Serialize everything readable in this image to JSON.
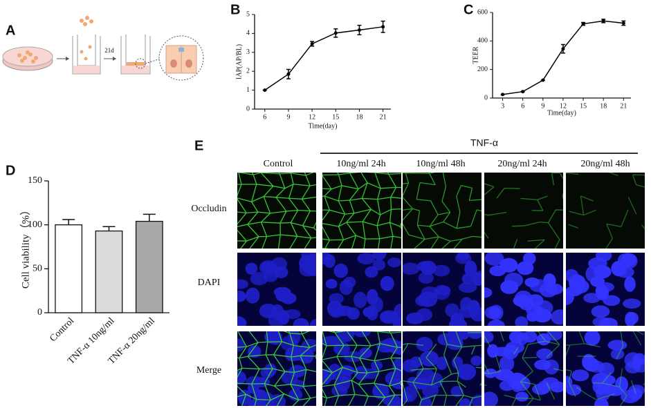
{
  "panel_labels": [
    "A",
    "B",
    "C",
    "D",
    "E"
  ],
  "schematic": {
    "step_label": "21d"
  },
  "chart_data": [
    {
      "type": "line",
      "ylabel": "IAP(AP/BL)",
      "xlabel": "Time(day)",
      "x": [
        6,
        9,
        12,
        15,
        18,
        21
      ],
      "values": [
        1,
        1.85,
        3.45,
        4.02,
        4.18,
        4.35
      ],
      "errors": [
        0,
        0.25,
        0.12,
        0.22,
        0.25,
        0.3
      ],
      "xlim": [
        4.7,
        22
      ],
      "xticks": [
        6,
        9,
        12,
        15,
        18,
        21
      ],
      "ylim": [
        0,
        5
      ],
      "yticks": [
        0,
        1,
        2,
        3,
        4,
        5
      ],
      "color": "#000000"
    },
    {
      "type": "line",
      "ylabel": "TEER",
      "xlabel": "Time(day)",
      "x": [
        3,
        6,
        9,
        12,
        15,
        18,
        21
      ],
      "values": [
        25,
        45,
        125,
        345,
        520,
        540,
        525
      ],
      "errors": [
        0,
        0,
        0,
        30,
        10,
        12,
        15
      ],
      "xlim": [
        1.5,
        22.1
      ],
      "xticks": [
        3,
        6,
        9,
        12,
        15,
        18,
        21
      ],
      "ylim": [
        0,
        600
      ],
      "yticks": [
        0,
        200,
        400,
        600
      ],
      "color": "#000000"
    },
    {
      "type": "bar",
      "ylabel": "Cell viability（%）",
      "categories": [
        "Control",
        "TNF-α 10ng/ml",
        "TNF-α 20ng/ml"
      ],
      "values": [
        100,
        93,
        104
      ],
      "errors": [
        6,
        5,
        8
      ],
      "colors": [
        "#ffffff",
        "#dcdcdc",
        "#a9a9a9"
      ],
      "ylim": [
        0,
        150
      ],
      "yticks": [
        0,
        50,
        100,
        150
      ]
    }
  ],
  "micrographs": {
    "group_label": "TNF-α",
    "columns": [
      "Control",
      "10ng/ml 24h",
      "10ng/ml 48h",
      "20ng/ml 24h",
      "20ng/ml 48h"
    ],
    "rows": [
      "Occludin",
      "DAPI",
      "Merge"
    ]
  }
}
